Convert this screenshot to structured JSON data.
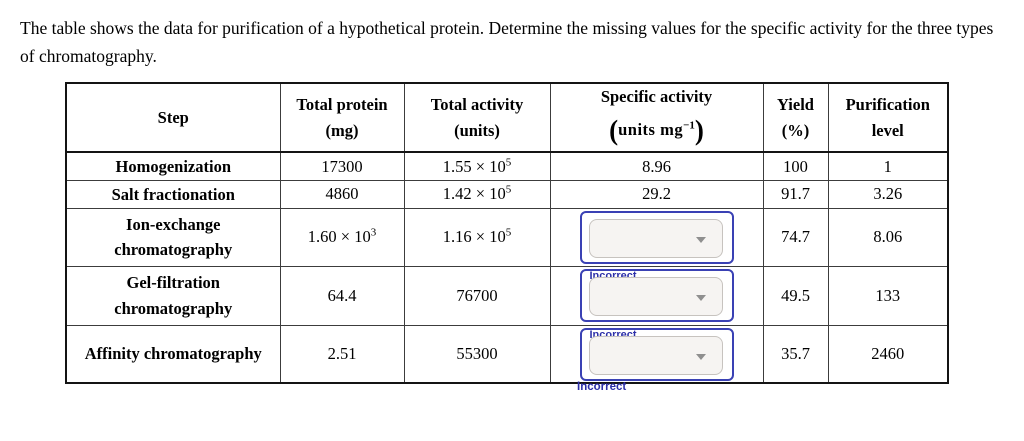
{
  "intro": "The table shows the data for purification of a hypothetical protein. Determine the missing values for the specific activity for the three types of chromatography.",
  "feedback": {
    "incorrect_label": "Incorrect"
  },
  "colors": {
    "focus_blue": "#3a41b4",
    "incorrect_blue": "#2c2fa8",
    "select_bg": "#f6f4f2",
    "select_border": "#c7c3bf",
    "caret_gray": "#8f8f8f",
    "table_border": "#141414"
  },
  "icons": {
    "dropdown_caret": "chevron-down"
  },
  "table": {
    "headers": {
      "step": {
        "line1": "Step"
      },
      "total_protein": {
        "line1": "Total protein",
        "line2": "(mg)"
      },
      "total_activity": {
        "line1": "Total activity",
        "line2": "(units)"
      },
      "specific_activity": {
        "line1": "Specific activity",
        "open_paren": "(",
        "unit": "units mg",
        "exponent": "−1",
        "close_paren": ")"
      },
      "yield": {
        "line1": "Yield",
        "line2": "(%)"
      },
      "purification": {
        "line1": "Purification",
        "line2": "level"
      }
    },
    "rows": [
      {
        "step": "Homogenization",
        "total_protein": {
          "base": "17300",
          "exp": ""
        },
        "total_activity": {
          "base": "1.55 × 10",
          "exp": "5"
        },
        "specific_activity": "8.96",
        "yield": "100",
        "purification": "1"
      },
      {
        "step": "Salt fractionation",
        "total_protein": {
          "base": "4860",
          "exp": ""
        },
        "total_activity": {
          "base": "1.42 × 10",
          "exp": "5"
        },
        "specific_activity": "29.2",
        "yield": "91.7",
        "purification": "3.26"
      },
      {
        "step": "Ion-exchange chromatography",
        "total_protein": {
          "base": "1.60 × 10",
          "exp": "3"
        },
        "total_activity": {
          "base": "1.16 × 10",
          "exp": "5"
        },
        "specific_activity": "",
        "yield": "74.7",
        "purification": "8.06"
      },
      {
        "step": "Gel-filtration chromatography",
        "total_protein": {
          "base": "64.4",
          "exp": ""
        },
        "total_activity": {
          "base": "76700",
          "exp": ""
        },
        "specific_activity": "",
        "yield": "49.5",
        "purification": "133"
      },
      {
        "step": "Affinity chromatography",
        "total_protein": {
          "base": "2.51",
          "exp": ""
        },
        "total_activity": {
          "base": "55300",
          "exp": ""
        },
        "specific_activity": "",
        "yield": "35.7",
        "purification": "2460"
      }
    ]
  }
}
